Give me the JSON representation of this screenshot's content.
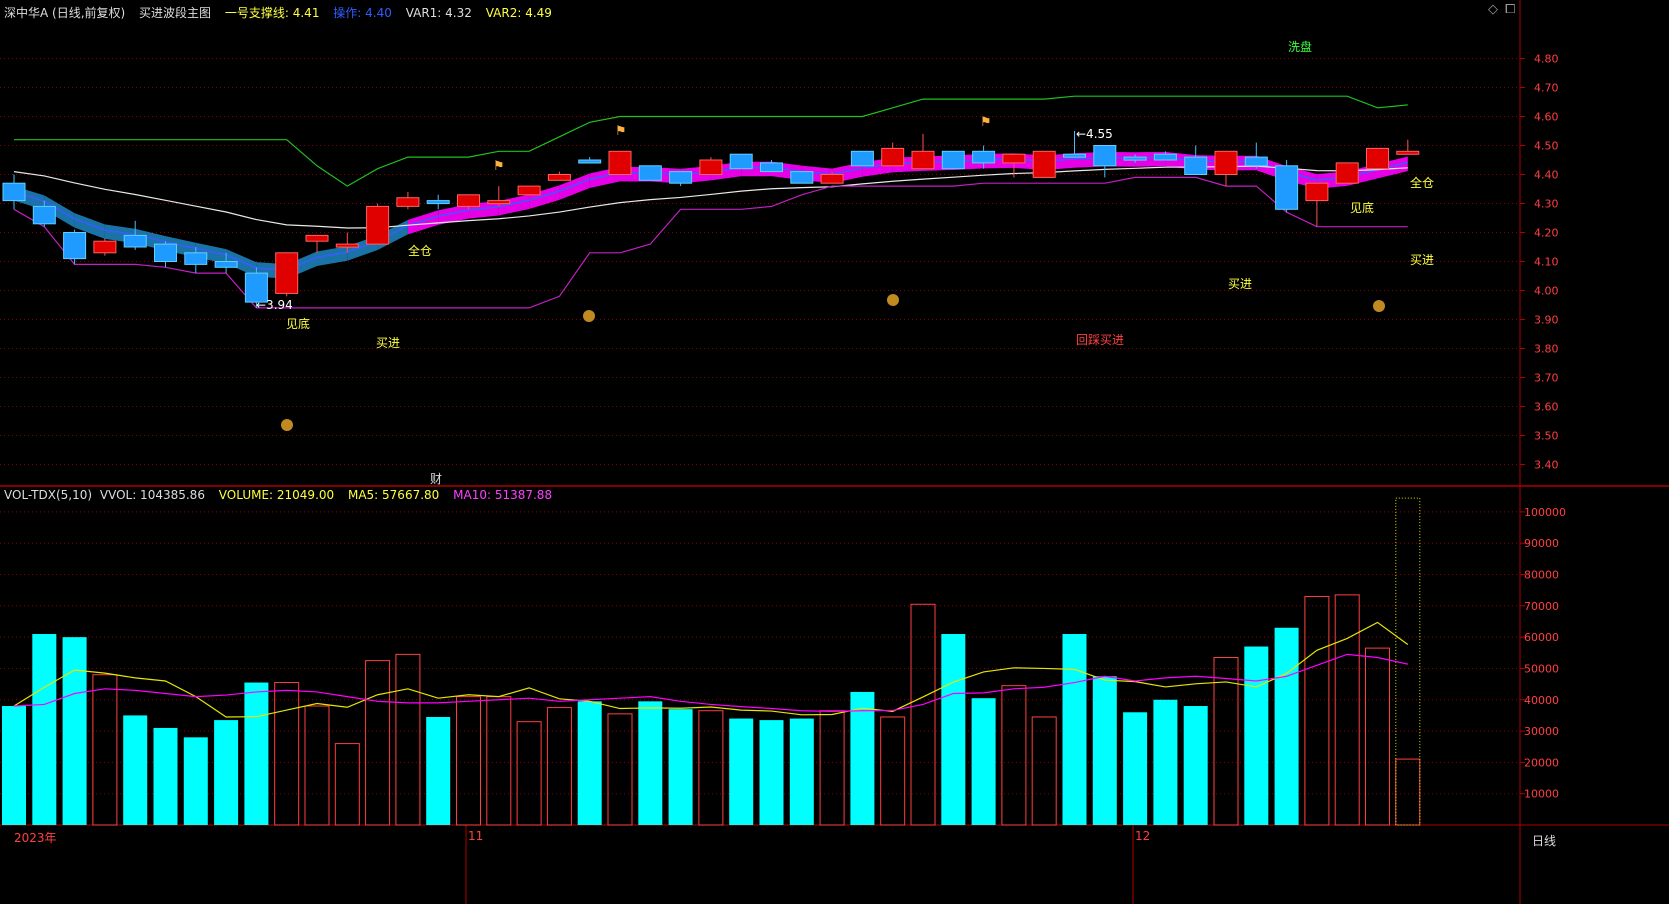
{
  "price_header": {
    "stock": "深中华A (日线,前复权)",
    "indicator": "买进波段主图",
    "support_label": "一号支撑线: 4.41",
    "op_label": "操作: 4.40",
    "var1_label": "VAR1: 4.32",
    "var2_label": "VAR2: 4.49"
  },
  "vol_header": {
    "name": "VOL-TDX(5,10)",
    "vvol": "VVOL: 104385.86",
    "volume": "VOLUME: 21049.00",
    "ma5": "MA5: 57667.80",
    "ma10": "MA10: 51387.88"
  },
  "bottom_labels": {
    "year": "2023年",
    "nov": "11",
    "dec": "12",
    "period": "日线"
  },
  "colors": {
    "up": "#ff3c3c",
    "down": "#00ffff",
    "grid": "#8a0000",
    "ma5": "#e6e600",
    "ma10": "#ff00ff",
    "label_yellow": "#ffff40",
    "label_green": "#40ff40",
    "label_red": "#ff4040"
  },
  "chart_data": [
    {
      "type": "candlestick",
      "title": "买进波段主图",
      "ylim": [
        3.35,
        4.87
      ],
      "y_ticks": [
        "4.80",
        "4.70",
        "4.60",
        "4.50",
        "4.40",
        "4.30",
        "4.20",
        "4.10",
        "4.00",
        "3.90",
        "3.80",
        "3.70",
        "3.60",
        "3.50",
        "3.40"
      ],
      "candles": [
        {
          "o": 4.37,
          "h": 4.4,
          "l": 4.28,
          "c": 4.31
        },
        {
          "o": 4.29,
          "h": 4.31,
          "l": 4.22,
          "c": 4.23
        },
        {
          "o": 4.2,
          "h": 4.21,
          "l": 4.09,
          "c": 4.11
        },
        {
          "o": 4.13,
          "h": 4.18,
          "l": 4.12,
          "c": 4.17
        },
        {
          "o": 4.19,
          "h": 4.24,
          "l": 4.14,
          "c": 4.15
        },
        {
          "o": 4.16,
          "h": 4.17,
          "l": 4.08,
          "c": 4.1
        },
        {
          "o": 4.13,
          "h": 4.15,
          "l": 4.06,
          "c": 4.09
        },
        {
          "o": 4.1,
          "h": 4.13,
          "l": 4.06,
          "c": 4.08
        },
        {
          "o": 4.06,
          "h": 4.08,
          "l": 3.94,
          "c": 3.96
        },
        {
          "o": 3.99,
          "h": 4.13,
          "l": 3.98,
          "c": 4.13
        },
        {
          "o": 4.17,
          "h": 4.19,
          "l": 4.13,
          "c": 4.19
        },
        {
          "o": 4.16,
          "h": 4.2,
          "l": 4.13,
          "c": 4.16
        },
        {
          "o": 4.16,
          "h": 4.3,
          "l": 4.16,
          "c": 4.29
        },
        {
          "o": 4.29,
          "h": 4.34,
          "l": 4.28,
          "c": 4.32
        },
        {
          "o": 4.31,
          "h": 4.33,
          "l": 4.28,
          "c": 4.3
        },
        {
          "o": 4.29,
          "h": 4.33,
          "l": 4.28,
          "c": 4.33
        },
        {
          "o": 4.3,
          "h": 4.36,
          "l": 4.29,
          "c": 4.31
        },
        {
          "o": 4.33,
          "h": 4.36,
          "l": 4.33,
          "c": 4.36
        },
        {
          "o": 4.38,
          "h": 4.41,
          "l": 4.38,
          "c": 4.4
        },
        {
          "o": 4.45,
          "h": 4.46,
          "l": 4.44,
          "c": 4.44
        },
        {
          "o": 4.4,
          "h": 4.48,
          "l": 4.4,
          "c": 4.48
        },
        {
          "o": 4.43,
          "h": 4.43,
          "l": 4.38,
          "c": 4.38
        },
        {
          "o": 4.41,
          "h": 4.4,
          "l": 4.36,
          "c": 4.37
        },
        {
          "o": 4.4,
          "h": 4.46,
          "l": 4.4,
          "c": 4.45
        },
        {
          "o": 4.47,
          "h": 4.47,
          "l": 4.42,
          "c": 4.42
        },
        {
          "o": 4.44,
          "h": 4.45,
          "l": 4.41,
          "c": 4.41
        },
        {
          "o": 4.41,
          "h": 4.41,
          "l": 4.37,
          "c": 4.37
        },
        {
          "o": 4.37,
          "h": 4.41,
          "l": 4.37,
          "c": 4.4
        },
        {
          "o": 4.48,
          "h": 4.48,
          "l": 4.43,
          "c": 4.43
        },
        {
          "o": 4.43,
          "h": 4.51,
          "l": 4.43,
          "c": 4.49
        },
        {
          "o": 4.42,
          "h": 4.54,
          "l": 4.42,
          "c": 4.48
        },
        {
          "o": 4.48,
          "h": 4.48,
          "l": 4.42,
          "c": 4.42
        },
        {
          "o": 4.48,
          "h": 4.5,
          "l": 4.42,
          "c": 4.44
        },
        {
          "o": 4.44,
          "h": 4.47,
          "l": 4.39,
          "c": 4.47
        },
        {
          "o": 4.39,
          "h": 4.48,
          "l": 4.39,
          "c": 4.48
        },
        {
          "o": 4.47,
          "h": 4.55,
          "l": 4.46,
          "c": 4.46
        },
        {
          "o": 4.5,
          "h": 4.5,
          "l": 4.39,
          "c": 4.43
        },
        {
          "o": 4.46,
          "h": 4.47,
          "l": 4.44,
          "c": 4.45
        },
        {
          "o": 4.47,
          "h": 4.48,
          "l": 4.45,
          "c": 4.45
        },
        {
          "o": 4.46,
          "h": 4.5,
          "l": 4.4,
          "c": 4.4
        },
        {
          "o": 4.4,
          "h": 4.48,
          "l": 4.36,
          "c": 4.48
        },
        {
          "o": 4.46,
          "h": 4.51,
          "l": 4.42,
          "c": 4.43
        },
        {
          "o": 4.43,
          "h": 4.45,
          "l": 4.27,
          "c": 4.28
        },
        {
          "o": 4.31,
          "h": 4.37,
          "l": 4.22,
          "c": 4.37
        },
        {
          "o": 4.37,
          "h": 4.44,
          "l": 4.37,
          "c": 4.44
        },
        {
          "o": 4.42,
          "h": 4.49,
          "l": 4.42,
          "c": 4.49
        },
        {
          "o": 4.48,
          "h": 4.52,
          "l": 4.47,
          "c": 4.48
        }
      ],
      "annotations": [
        {
          "text": "←3.94"
        },
        {
          "text": "←4.55"
        },
        {
          "text": "见底"
        },
        {
          "text": "买进"
        },
        {
          "text": "全仓"
        },
        {
          "text": "洗盘"
        },
        {
          "text": "买进"
        },
        {
          "text": "回踩买进"
        },
        {
          "text": "见底"
        },
        {
          "text": "全仓"
        },
        {
          "text": "买进"
        },
        {
          "text": "财"
        }
      ]
    },
    {
      "type": "bar",
      "title": "VOL-TDX(5,10)",
      "ylim": [
        0,
        107000
      ],
      "y_ticks": [
        "100000",
        "90000",
        "80000",
        "70000",
        "60000",
        "50000",
        "40000",
        "30000",
        "20000",
        "10000"
      ],
      "series": [
        {
          "name": "VOLUME",
          "values": [
            38000,
            61000,
            60000,
            48000,
            35000,
            31000,
            28000,
            33500,
            45500,
            45500,
            38000,
            26000,
            52500,
            54500,
            34500,
            41000,
            41000,
            33000,
            37500,
            39500,
            35500,
            39500,
            37000,
            36500,
            34000,
            33500,
            34000,
            36500,
            42500,
            34500,
            70500,
            61000,
            40500,
            44500,
            34500,
            61000,
            47500,
            36000,
            40000,
            38000,
            53500,
            57000,
            63000,
            73000,
            73500,
            56500,
            21049
          ]
        },
        {
          "name": "MA5",
          "values": [
            38000,
            44000,
            49500,
            48500,
            47000,
            46000,
            41000,
            34500,
            34600,
            36700,
            38800,
            37600,
            41600,
            43500,
            40500,
            41600,
            41000,
            43800,
            40300,
            39500,
            37200,
            37400,
            37300,
            37700,
            36700,
            36400,
            35200,
            35300,
            37300,
            36300,
            40900,
            45600,
            48900,
            50200,
            50000,
            49700,
            46300,
            45800,
            44100,
            45100,
            45700,
            44100,
            48400,
            55800,
            59600,
            64700,
            57667
          ]
        },
        {
          "name": "MA10",
          "values": [
            38000,
            38500,
            42000,
            43500,
            43000,
            42000,
            41000,
            41500,
            42500,
            43000,
            42500,
            41000,
            39500,
            39000,
            39000,
            39500,
            40000,
            40500,
            39500,
            40000,
            40500,
            41000,
            39500,
            38500,
            37800,
            37200,
            36500,
            36300,
            36500,
            36600,
            38500,
            42000,
            42200,
            43500,
            44000,
            45500,
            47500,
            46000,
            47000,
            47500,
            46800,
            46000,
            47500,
            51000,
            54500,
            53500,
            51387
          ]
        }
      ]
    }
  ]
}
